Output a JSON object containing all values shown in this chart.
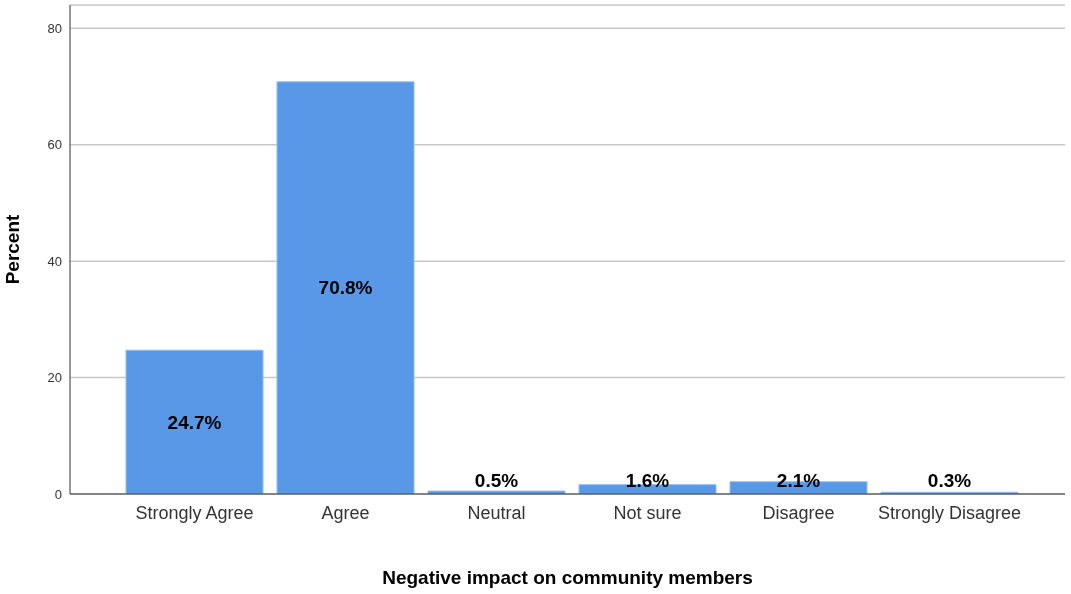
{
  "chart_data": {
    "type": "bar",
    "xlabel": "Negative impact on community members",
    "ylabel": "Percent",
    "categories": [
      "Strongly Agree",
      "Agree",
      "Neutral",
      "Not sure",
      "Disagree",
      "Strongly Disagree"
    ],
    "values": [
      24.7,
      70.8,
      0.5,
      1.6,
      2.1,
      0.3
    ],
    "value_labels": [
      "24.7%",
      "70.8%",
      "0.5%",
      "1.6%",
      "2.1%",
      "0.3%"
    ],
    "color": "#5898e6",
    "ylim": [
      0,
      84
    ],
    "yticks": [
      0,
      20,
      40,
      60,
      80
    ],
    "grid": "y"
  }
}
